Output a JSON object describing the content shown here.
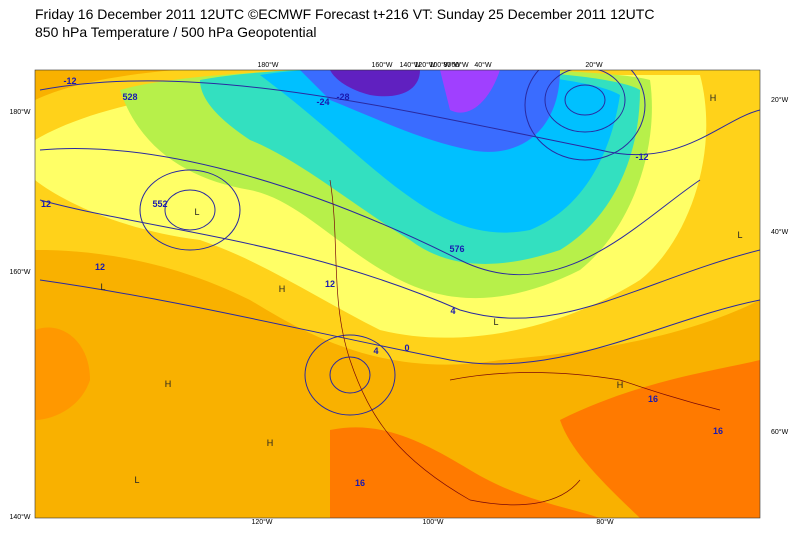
{
  "header": {
    "line1": "Friday 16 December 2011 12UTC ©ECMWF Forecast t+216 VT: Sunday 25 December 2011 12UTC",
    "line2": "850 hPa Temperature / 500 hPa Geopotential"
  },
  "map": {
    "top_labels": [
      "180°W",
      "160°W",
      "140°W",
      "120°W",
      "100°W",
      "80°W",
      "60°W",
      "40°W",
      "20°W"
    ],
    "left_labels": [
      "180°W",
      "160°W",
      "140°W"
    ],
    "right_labels": [
      "20°W",
      "40°W",
      "60°W"
    ],
    "bottom_labels": [
      "120°W",
      "100°W",
      "80°W"
    ],
    "pressure_centers": [
      "L",
      "H",
      "L",
      "H",
      "H",
      "L",
      "H",
      "L",
      "H",
      "L"
    ],
    "contour_labels": [
      "-12",
      "528",
      "-24",
      "-28",
      "552",
      "12",
      "12",
      "12",
      "4",
      "0",
      "576",
      "16",
      "16",
      "16",
      "4",
      "-12"
    ]
  }
}
